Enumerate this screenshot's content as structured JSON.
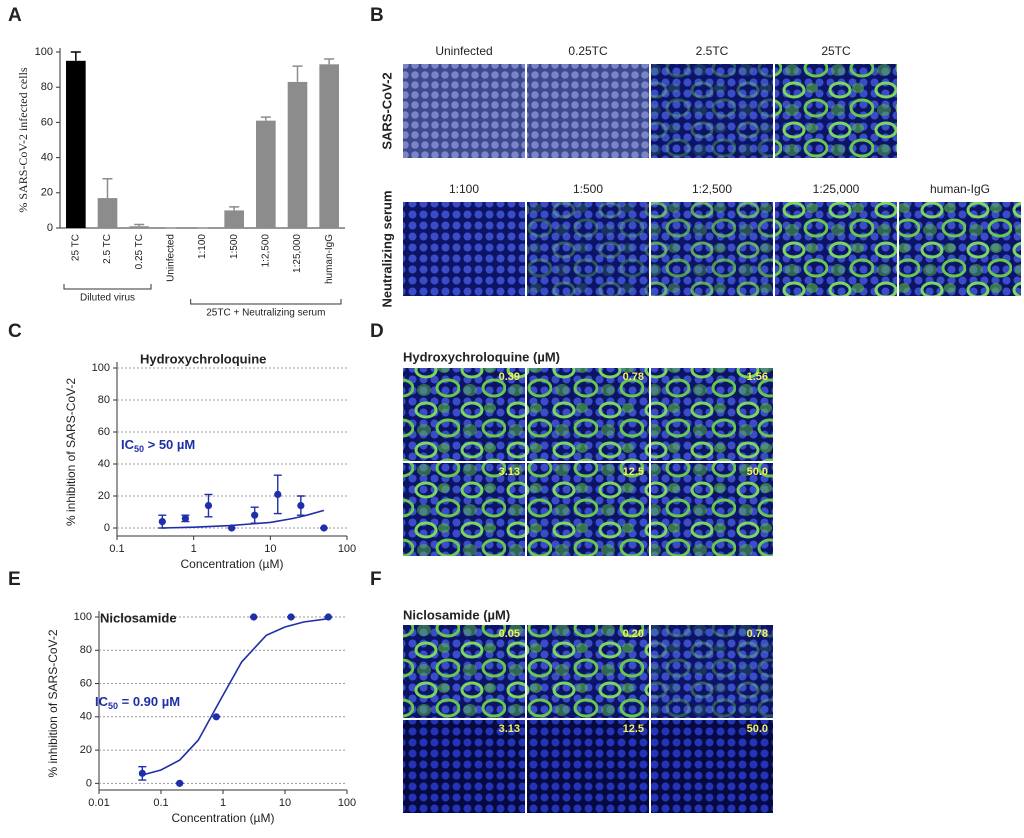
{
  "chart_data": [
    {
      "type": "bar",
      "panel_label": "A",
      "ylabel": "% SARS-CoV-2 infected cells",
      "categories": [
        "25 TC",
        "2.5 TC",
        "0.25 TC",
        "Uninfected",
        "1:100",
        "1:500",
        "1:2,500",
        "1:25,000",
        "human-IgG"
      ],
      "values": [
        95,
        17,
        1,
        0,
        0,
        10,
        61,
        83,
        93
      ],
      "errors": [
        5,
        11,
        1,
        0,
        0,
        2,
        2,
        9,
        3
      ],
      "colors": [
        "#000000",
        "#8c8c8c",
        "#8c8c8c",
        "#8c8c8c",
        "#8c8c8c",
        "#8c8c8c",
        "#8c8c8c",
        "#8c8c8c",
        "#8c8c8c"
      ],
      "groups": [
        {
          "label": "Diluted virus"
        },
        {
          "label": "25TC + Neutralizing serum"
        }
      ],
      "ylim": [
        0,
        100
      ],
      "yticks": [
        0,
        20,
        40,
        60,
        80,
        100
      ]
    },
    {
      "type": "scatter",
      "panel_label": "C",
      "title": "Hydroxychroloquine",
      "xlabel": "Concentration (µM)",
      "ylabel": "% inhibition of SARS-CoV-2",
      "annotation": {
        "text": "IC",
        "sub": "50",
        "rest": " > 50 µM"
      },
      "xscale": "log",
      "color": "#1f2fa8",
      "grid": true,
      "points": {
        "x": [
          0.39,
          0.78,
          1.56,
          3.13,
          6.25,
          12.5,
          25,
          50
        ],
        "values": [
          4,
          6,
          14,
          0,
          8,
          21,
          14,
          0
        ],
        "errors": [
          4,
          2,
          7,
          0,
          5,
          12,
          6,
          0
        ]
      },
      "fit": {
        "x": [
          0.39,
          1,
          3,
          10,
          20,
          30,
          50
        ],
        "values": [
          0,
          0.5,
          1.5,
          3.5,
          6,
          8,
          11
        ]
      },
      "xlim": [
        0.1,
        100
      ],
      "xticks": [
        0.1,
        1,
        10,
        100
      ],
      "ylim": [
        -5,
        100
      ],
      "yticks": [
        0,
        20,
        40,
        60,
        80,
        100
      ]
    },
    {
      "type": "scatter",
      "panel_label": "E",
      "title": "Niclosamide",
      "xlabel": "Concentration (µM)",
      "ylabel": "% inhibition of SARS-CoV-2",
      "annotation": {
        "text": "IC",
        "sub": "50",
        "rest": " = 0.90 µM"
      },
      "xscale": "log",
      "color": "#1f2fa8",
      "grid": true,
      "points": {
        "x": [
          0.05,
          0.2,
          0.78,
          3.13,
          12.5,
          50
        ],
        "values": [
          6,
          0,
          40,
          100,
          100,
          100
        ],
        "errors": [
          4,
          0,
          0,
          0,
          0,
          0
        ]
      },
      "fit": {
        "x": [
          0.05,
          0.1,
          0.2,
          0.4,
          0.9,
          2,
          5,
          10,
          20,
          50
        ],
        "values": [
          5,
          8,
          14,
          26,
          50,
          73,
          89,
          94,
          97,
          99
        ]
      },
      "xlim": [
        0.01,
        100
      ],
      "xticks": [
        0.01,
        0.1,
        1,
        10,
        100
      ],
      "ylim": [
        -4,
        100
      ],
      "yticks": [
        0,
        20,
        40,
        60,
        80,
        100
      ]
    }
  ],
  "image_panels": [
    {
      "panel_label": "B",
      "rows": [
        {
          "label": "SARS-CoV-2",
          "tiles": [
            "Uninfected",
            "0.25TC",
            "2.5TC",
            "25TC"
          ]
        },
        {
          "label": "Neutralizing serum",
          "tiles": [
            "1:100",
            "1:500",
            "1:2,500",
            "1:25,000",
            "human-IgG"
          ]
        }
      ]
    },
    {
      "panel_label": "D",
      "title": "Hydroxychroloquine (µM)",
      "tiles": [
        "0.39",
        "0.78",
        "1.56",
        "3.13",
        "12.5",
        "50.0"
      ]
    },
    {
      "panel_label": "F",
      "title": "Niclosamide (µM)",
      "tiles": [
        "0.05",
        "0.20",
        "0.78",
        "3.13",
        "12.5",
        "50.0"
      ]
    }
  ]
}
